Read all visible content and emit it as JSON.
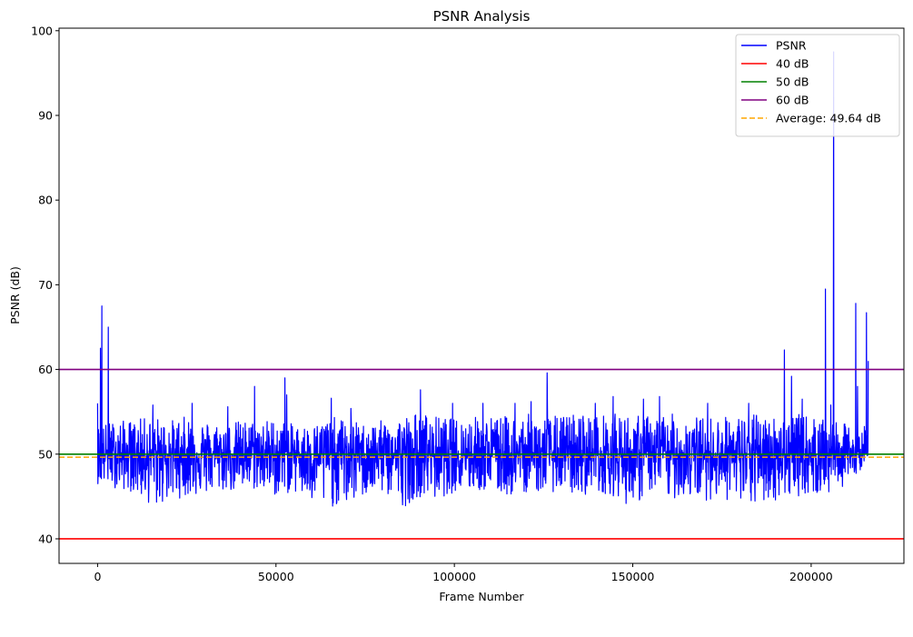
{
  "chart_data": {
    "type": "line",
    "title": "PSNR Analysis",
    "xlabel": "Frame Number",
    "ylabel": "PSNR (dB)",
    "xlim": [
      -10800,
      226000
    ],
    "ylim": [
      37.1,
      100.3
    ],
    "xticks": [
      0,
      50000,
      100000,
      150000,
      200000
    ],
    "xtick_labels": [
      "0",
      "50000",
      "100000",
      "150000",
      "200000"
    ],
    "yticks": [
      40,
      50,
      60,
      70,
      80,
      90,
      100
    ],
    "ytick_labels": [
      "40",
      "50",
      "60",
      "70",
      "80",
      "90",
      "100"
    ],
    "grid": false,
    "legend_position": "top-right",
    "series": [
      {
        "name": "PSNR",
        "color": "#0000ff",
        "style": "solid",
        "band_low": [
          [
            0,
            46.5
          ],
          [
            5000,
            46.0
          ],
          [
            10000,
            45.5
          ],
          [
            16000,
            43.6
          ],
          [
            20000,
            44.5
          ],
          [
            25000,
            45.0
          ],
          [
            30000,
            45.2
          ],
          [
            35000,
            45.6
          ],
          [
            40000,
            45.5
          ],
          [
            45000,
            45.8
          ],
          [
            50000,
            45.0
          ],
          [
            55000,
            45.5
          ],
          [
            60000,
            44.0
          ],
          [
            63000,
            43.6
          ],
          [
            70000,
            44.0
          ],
          [
            75000,
            45.0
          ],
          [
            80000,
            45.4
          ],
          [
            86000,
            43.8
          ],
          [
            90000,
            45.0
          ],
          [
            95000,
            44.6
          ],
          [
            100000,
            45.5
          ],
          [
            105000,
            45.6
          ],
          [
            110000,
            45.6
          ],
          [
            115000,
            45.0
          ],
          [
            120000,
            45.5
          ],
          [
            125000,
            45.5
          ],
          [
            130000,
            45.6
          ],
          [
            135000,
            45.0
          ],
          [
            140000,
            45.6
          ],
          [
            145000,
            45.0
          ],
          [
            150000,
            43.6
          ],
          [
            155000,
            45.6
          ],
          [
            160000,
            44.6
          ],
          [
            165000,
            45.0
          ],
          [
            170000,
            44.5
          ],
          [
            175000,
            45.0
          ],
          [
            180000,
            43.4
          ],
          [
            185000,
            44.0
          ],
          [
            190000,
            44.5
          ],
          [
            195000,
            45.0
          ],
          [
            200000,
            45.2
          ],
          [
            205000,
            45.2
          ],
          [
            210000,
            46.5
          ],
          [
            213000,
            47.5
          ],
          [
            216000,
            50.0
          ]
        ],
        "band_high": [
          [
            0,
            53.5
          ],
          [
            5000,
            54.0
          ],
          [
            10000,
            54.0
          ],
          [
            15000,
            54.5
          ],
          [
            20000,
            54.0
          ],
          [
            25000,
            54.5
          ],
          [
            30000,
            54.0
          ],
          [
            35000,
            53.6
          ],
          [
            40000,
            54.0
          ],
          [
            45000,
            54.0
          ],
          [
            50000,
            54.2
          ],
          [
            55000,
            53.5
          ],
          [
            60000,
            53.4
          ],
          [
            65000,
            54.5
          ],
          [
            70000,
            54.0
          ],
          [
            75000,
            53.6
          ],
          [
            80000,
            54.0
          ],
          [
            85000,
            54.5
          ],
          [
            90000,
            55.0
          ],
          [
            95000,
            54.5
          ],
          [
            100000,
            54.2
          ],
          [
            105000,
            54.5
          ],
          [
            110000,
            54.5
          ],
          [
            115000,
            54.5
          ],
          [
            120000,
            54.8
          ],
          [
            125000,
            54.5
          ],
          [
            130000,
            54.6
          ],
          [
            135000,
            55.0
          ],
          [
            140000,
            54.6
          ],
          [
            145000,
            54.8
          ],
          [
            150000,
            54.6
          ],
          [
            155000,
            54.6
          ],
          [
            160000,
            54.8
          ],
          [
            165000,
            54.6
          ],
          [
            170000,
            54.4
          ],
          [
            175000,
            54.5
          ],
          [
            180000,
            54.5
          ],
          [
            185000,
            54.8
          ],
          [
            190000,
            54.5
          ],
          [
            195000,
            54.8
          ],
          [
            200000,
            54.5
          ],
          [
            205000,
            53.8
          ],
          [
            210000,
            53.6
          ],
          [
            213000,
            52.8
          ],
          [
            216000,
            54.0
          ]
        ],
        "spikes": [
          [
            0,
            56.0
          ],
          [
            800,
            62.5
          ],
          [
            1200,
            67.5
          ],
          [
            3000,
            65.0
          ],
          [
            15500,
            55.8
          ],
          [
            26500,
            56.0
          ],
          [
            36500,
            55.6
          ],
          [
            44000,
            58.0
          ],
          [
            52500,
            59.0
          ],
          [
            53000,
            57.0
          ],
          [
            65500,
            56.6
          ],
          [
            71000,
            55.4
          ],
          [
            90500,
            57.6
          ],
          [
            99500,
            56.0
          ],
          [
            108000,
            56.0
          ],
          [
            117000,
            56.0
          ],
          [
            121500,
            56.2
          ],
          [
            126000,
            59.6
          ],
          [
            139500,
            56.0
          ],
          [
            144500,
            56.8
          ],
          [
            153000,
            56.5
          ],
          [
            157500,
            56.8
          ],
          [
            171000,
            56.0
          ],
          [
            182500,
            56.0
          ],
          [
            192500,
            62.3
          ],
          [
            194500,
            59.2
          ],
          [
            197500,
            56.5
          ],
          [
            204000,
            69.5
          ],
          [
            205500,
            55.8
          ],
          [
            206300,
            97.5
          ],
          [
            212500,
            67.8
          ],
          [
            213000,
            58.0
          ],
          [
            215500,
            66.7
          ],
          [
            216000,
            61.0
          ]
        ],
        "end_frame": 216000
      },
      {
        "name": "40 dB",
        "color": "#ff0000",
        "style": "solid",
        "y": 40
      },
      {
        "name": "50 dB",
        "color": "#008000",
        "style": "solid",
        "y": 50
      },
      {
        "name": "60 dB",
        "color": "#800080",
        "style": "solid",
        "y": 60
      },
      {
        "name": "Average: 49.64 dB",
        "color": "#ffa500",
        "style": "dashed",
        "y": 49.64
      }
    ]
  }
}
